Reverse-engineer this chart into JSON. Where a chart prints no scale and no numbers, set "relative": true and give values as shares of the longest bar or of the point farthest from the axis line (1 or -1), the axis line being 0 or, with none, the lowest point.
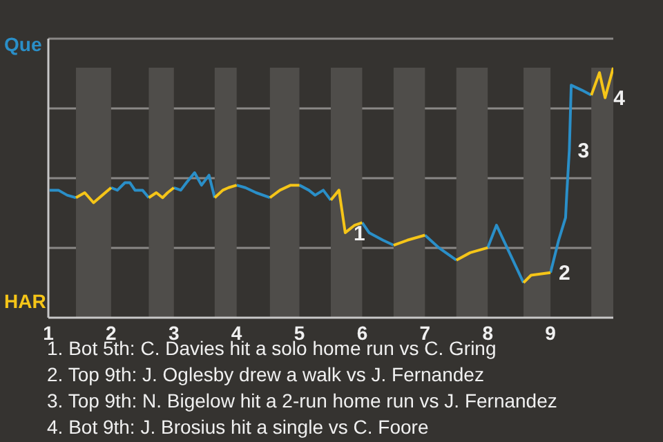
{
  "chart_data": {
    "type": "line",
    "relative": true,
    "x": [
      1.02,
      1.16,
      1.3,
      1.44,
      1.58,
      1.72,
      1.86,
      2,
      2.1,
      2.22,
      2.3,
      2.38,
      2.5,
      2.6,
      2.72,
      2.82,
      2.9,
      3,
      3.11,
      3.2,
      3.33,
      3.44,
      3.56,
      3.65,
      3.78,
      3.87,
      4,
      4.14,
      4.31,
      4.53,
      4.69,
      4.86,
      5,
      5.15,
      5.25,
      5.38,
      5.5,
      5.63,
      5.73,
      5.88,
      6,
      6.11,
      6.33,
      6.5,
      6.72,
      7,
      7.22,
      7.5,
      7.72,
      8,
      8.14,
      8.57,
      8.69,
      9,
      9.13,
      9.24,
      9.26,
      9.3,
      9.33,
      9.5,
      9.65,
      9.78,
      9.87,
      10
    ],
    "series": [
      {
        "color": "#2a8fc8",
        "values": [
          0.51,
          0.51,
          0.49,
          0.48,
          null,
          null,
          null,
          0.52,
          0.51,
          0.54,
          0.54,
          0.51,
          0.51,
          0.48,
          null,
          null,
          null,
          0.52,
          0.51,
          0.54,
          0.58,
          0.53,
          0.57,
          0.48,
          null,
          null,
          0.53,
          0.52,
          0.5,
          0.48,
          null,
          null,
          0.53,
          0.51,
          0.49,
          0.51,
          0.47,
          null,
          null,
          null,
          0.38,
          0.34,
          0.31,
          0.29,
          null,
          0.33,
          0.28,
          0.23,
          null,
          0.28,
          0.37,
          0.14,
          null,
          0.18,
          0.31,
          0.4,
          0.5,
          0.67,
          0.93,
          0.91,
          0.89,
          null,
          null,
          null
        ]
      },
      {
        "color": "#f5c518",
        "values": [
          null,
          null,
          null,
          0.48,
          0.5,
          0.46,
          0.49,
          0.52,
          null,
          null,
          null,
          null,
          null,
          0.48,
          0.5,
          0.48,
          0.5,
          0.52,
          null,
          null,
          null,
          null,
          null,
          0.48,
          0.51,
          0.52,
          0.53,
          null,
          null,
          0.48,
          0.51,
          0.53,
          0.53,
          null,
          null,
          null,
          0.47,
          0.51,
          0.34,
          0.37,
          0.38,
          null,
          null,
          0.29,
          0.31,
          0.33,
          null,
          0.23,
          0.26,
          0.28,
          null,
          0.14,
          0.17,
          0.18,
          null,
          null,
          null,
          null,
          null,
          null,
          0.89,
          0.98,
          0.88,
          1
        ]
      }
    ],
    "xlim": [
      1,
      10
    ],
    "xticks": [
      1,
      2,
      3,
      4,
      5,
      6,
      7,
      8,
      9
    ],
    "grid": "y",
    "bands": [
      {
        "axis": "x",
        "from": 1.44,
        "to": 2,
        "color": "#4f4d4a"
      },
      {
        "axis": "x",
        "from": 2.6,
        "to": 3,
        "color": "#4f4d4a"
      },
      {
        "axis": "x",
        "from": 3.65,
        "to": 4,
        "color": "#4f4d4a"
      },
      {
        "axis": "x",
        "from": 4.53,
        "to": 5,
        "color": "#4f4d4a"
      },
      {
        "axis": "x",
        "from": 5.5,
        "to": 6,
        "color": "#4f4d4a"
      },
      {
        "axis": "x",
        "from": 6.5,
        "to": 7,
        "color": "#4f4d4a"
      },
      {
        "axis": "x",
        "from": 7.5,
        "to": 8,
        "color": "#4f4d4a"
      },
      {
        "axis": "x",
        "from": 8.57,
        "to": 9,
        "color": "#4f4d4a"
      },
      {
        "axis": "x",
        "from": 9.65,
        "to": 10,
        "color": "#4f4d4a"
      }
    ],
    "annotations": [
      "Que",
      "HAR",
      {
        "text": "1",
        "x": 5.73,
        "y": 0.34
      },
      {
        "text": "2",
        "x": 9,
        "y": 0.18
      },
      {
        "text": "3",
        "x": 9.3,
        "y": 0.67
      },
      {
        "text": "4",
        "x": 9.87,
        "y": 0.88
      },
      "1. Bot 5th: C. Davies hit a solo home run vs C. Gring",
      "2. Top 9th: J. Oglesby drew a walk vs J. Fernandez",
      "3. Top 9th: N. Bigelow hit a 2-run home run vs J. Fernandez",
      "4. Bot 9th: J. Brosius hit a single vs C. Foore"
    ]
  }
}
